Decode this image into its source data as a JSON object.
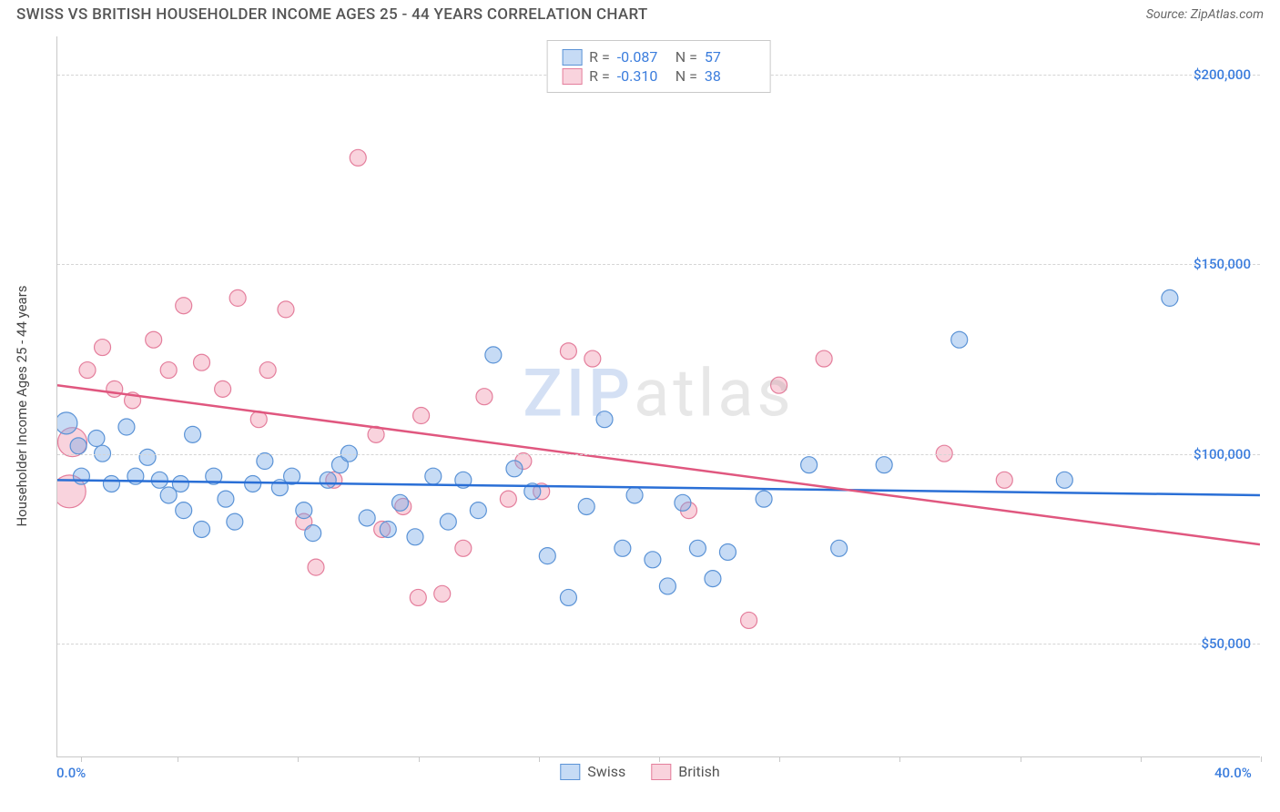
{
  "header": {
    "title": "SWISS VS BRITISH HOUSEHOLDER INCOME AGES 25 - 44 YEARS CORRELATION CHART",
    "source": "Source: ZipAtlas.com"
  },
  "watermark": {
    "left": "ZIP",
    "right": "atlas"
  },
  "chart": {
    "type": "scatter",
    "ylabel": "Householder Income Ages 25 - 44 years",
    "xlim": [
      0,
      40
    ],
    "ylim": [
      20000,
      210000
    ],
    "x_axis": {
      "min_label": "0.0%",
      "max_label": "40.0%",
      "ticks_pct": [
        2,
        10,
        20,
        30,
        40,
        50,
        60,
        70,
        80,
        90,
        100
      ]
    },
    "y_gridlines": [
      50000,
      100000,
      150000,
      200000
    ],
    "y_tick_labels": [
      "$50,000",
      "$100,000",
      "$150,000",
      "$200,000"
    ],
    "background_color": "#ffffff",
    "grid_color": "#d5d5d5",
    "axis_font_color": "#3b7ddd",
    "series": [
      {
        "name": "Swiss",
        "fill": "rgba(120,170,230,0.42)",
        "stroke": "#5b93d6",
        "line_color": "#2a6fd6",
        "marker_r": 9,
        "correlation": {
          "R_label": "R =",
          "R": "-0.087",
          "N_label": "N =",
          "N": "57"
        },
        "trend": {
          "y_at_xmin": 93000,
          "y_at_xmax": 89000
        },
        "points": [
          {
            "x": 0.3,
            "y": 108000,
            "r": 12
          },
          {
            "x": 0.7,
            "y": 102000
          },
          {
            "x": 0.8,
            "y": 94000
          },
          {
            "x": 1.3,
            "y": 104000
          },
          {
            "x": 1.5,
            "y": 100000
          },
          {
            "x": 1.8,
            "y": 92000
          },
          {
            "x": 2.3,
            "y": 107000
          },
          {
            "x": 2.6,
            "y": 94000
          },
          {
            "x": 3.0,
            "y": 99000
          },
          {
            "x": 3.4,
            "y": 93000
          },
          {
            "x": 3.7,
            "y": 89000
          },
          {
            "x": 4.1,
            "y": 92000
          },
          {
            "x": 4.5,
            "y": 105000
          },
          {
            "x": 4.8,
            "y": 80000
          },
          {
            "x": 5.2,
            "y": 94000
          },
          {
            "x": 5.6,
            "y": 88000
          },
          {
            "x": 5.9,
            "y": 82000
          },
          {
            "x": 4.2,
            "y": 85000
          },
          {
            "x": 6.5,
            "y": 92000
          },
          {
            "x": 6.9,
            "y": 98000
          },
          {
            "x": 7.4,
            "y": 91000
          },
          {
            "x": 7.8,
            "y": 94000
          },
          {
            "x": 8.2,
            "y": 85000
          },
          {
            "x": 8.5,
            "y": 79000
          },
          {
            "x": 9.0,
            "y": 93000
          },
          {
            "x": 9.4,
            "y": 97000
          },
          {
            "x": 9.7,
            "y": 100000
          },
          {
            "x": 10.3,
            "y": 83000
          },
          {
            "x": 11.0,
            "y": 80000
          },
          {
            "x": 11.4,
            "y": 87000
          },
          {
            "x": 11.9,
            "y": 78000
          },
          {
            "x": 12.5,
            "y": 94000
          },
          {
            "x": 13.0,
            "y": 82000
          },
          {
            "x": 13.5,
            "y": 93000
          },
          {
            "x": 14.0,
            "y": 85000
          },
          {
            "x": 14.5,
            "y": 126000
          },
          {
            "x": 15.2,
            "y": 96000
          },
          {
            "x": 15.8,
            "y": 90000
          },
          {
            "x": 16.3,
            "y": 73000
          },
          {
            "x": 17.0,
            "y": 62000
          },
          {
            "x": 17.6,
            "y": 86000
          },
          {
            "x": 18.2,
            "y": 109000
          },
          {
            "x": 18.8,
            "y": 75000
          },
          {
            "x": 19.2,
            "y": 89000
          },
          {
            "x": 19.8,
            "y": 72000
          },
          {
            "x": 20.3,
            "y": 65000
          },
          {
            "x": 20.8,
            "y": 87000
          },
          {
            "x": 21.3,
            "y": 75000
          },
          {
            "x": 21.8,
            "y": 67000
          },
          {
            "x": 22.3,
            "y": 74000
          },
          {
            "x": 23.5,
            "y": 88000
          },
          {
            "x": 25.0,
            "y": 97000
          },
          {
            "x": 26.0,
            "y": 75000
          },
          {
            "x": 27.5,
            "y": 97000
          },
          {
            "x": 30.0,
            "y": 130000
          },
          {
            "x": 33.5,
            "y": 93000
          },
          {
            "x": 37.0,
            "y": 141000
          }
        ]
      },
      {
        "name": "British",
        "fill": "rgba(240,150,175,0.42)",
        "stroke": "#e47e9c",
        "line_color": "#e0577f",
        "marker_r": 9,
        "correlation": {
          "R_label": "R =",
          "R": "-0.310",
          "N_label": "N =",
          "N": "38"
        },
        "trend": {
          "y_at_xmin": 118000,
          "y_at_xmax": 76000
        },
        "points": [
          {
            "x": 0.5,
            "y": 103000,
            "r": 16
          },
          {
            "x": 0.4,
            "y": 90000,
            "r": 18
          },
          {
            "x": 1.0,
            "y": 122000
          },
          {
            "x": 1.5,
            "y": 128000
          },
          {
            "x": 1.9,
            "y": 117000
          },
          {
            "x": 2.5,
            "y": 114000
          },
          {
            "x": 3.2,
            "y": 130000
          },
          {
            "x": 3.7,
            "y": 122000
          },
          {
            "x": 4.2,
            "y": 139000
          },
          {
            "x": 4.8,
            "y": 124000
          },
          {
            "x": 5.5,
            "y": 117000
          },
          {
            "x": 6.0,
            "y": 141000
          },
          {
            "x": 6.7,
            "y": 109000
          },
          {
            "x": 7.0,
            "y": 122000
          },
          {
            "x": 7.6,
            "y": 138000
          },
          {
            "x": 8.2,
            "y": 82000
          },
          {
            "x": 8.6,
            "y": 70000
          },
          {
            "x": 9.2,
            "y": 93000
          },
          {
            "x": 10.0,
            "y": 178000
          },
          {
            "x": 10.6,
            "y": 105000
          },
          {
            "x": 10.8,
            "y": 80000
          },
          {
            "x": 11.5,
            "y": 86000
          },
          {
            "x": 12.0,
            "y": 62000
          },
          {
            "x": 12.1,
            "y": 110000
          },
          {
            "x": 12.8,
            "y": 63000
          },
          {
            "x": 13.5,
            "y": 75000
          },
          {
            "x": 14.2,
            "y": 115000
          },
          {
            "x": 15.0,
            "y": 88000
          },
          {
            "x": 15.5,
            "y": 98000
          },
          {
            "x": 16.1,
            "y": 90000
          },
          {
            "x": 17.0,
            "y": 127000
          },
          {
            "x": 17.8,
            "y": 125000
          },
          {
            "x": 21.0,
            "y": 85000
          },
          {
            "x": 23.0,
            "y": 56000
          },
          {
            "x": 24.0,
            "y": 118000
          },
          {
            "x": 25.5,
            "y": 125000
          },
          {
            "x": 29.5,
            "y": 100000
          },
          {
            "x": 31.5,
            "y": 93000
          }
        ]
      }
    ]
  }
}
